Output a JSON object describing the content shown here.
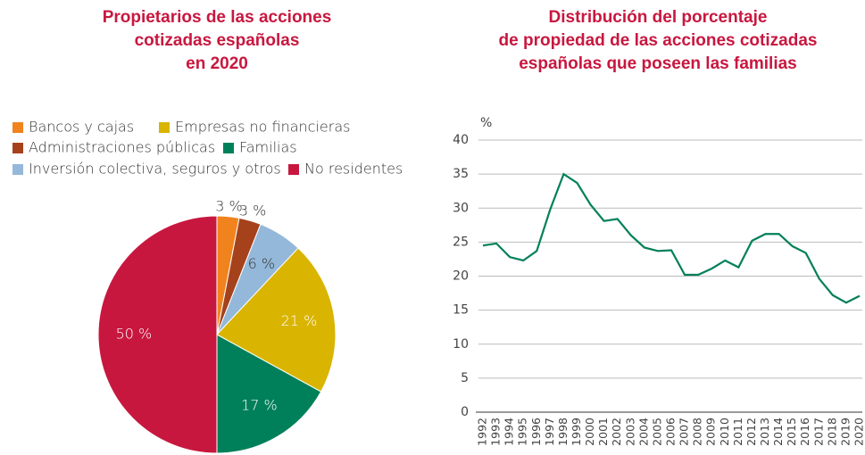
{
  "chart_data": [
    {
      "type": "pie",
      "title": [
        "Propietarios de las acciones",
        "cotizadas españolas",
        "en 2020"
      ],
      "categories": [
        "Bancos y cajas",
        "Administraciones públicas",
        "Inversión colectiva, seguros y otros",
        "Empresas no financieras",
        "Familias",
        "No residentes"
      ],
      "values": [
        3,
        3,
        6,
        21,
        17,
        50
      ],
      "value_labels": [
        "3 %",
        "3 %",
        "6 %",
        "21 %",
        "17 %",
        "50 %"
      ],
      "colors": [
        "#f0831e",
        "#a5421c",
        "#94b8d9",
        "#d9b400",
        "#00805a",
        "#c8173f"
      ]
    },
    {
      "type": "line",
      "title": [
        "Distribución del porcentaje",
        "de propiedad de las acciones cotizadas",
        "españolas que poseen las familias"
      ],
      "ylabel": "%",
      "categories": [
        "1992",
        "1993",
        "1994",
        "1995",
        "1996",
        "1997",
        "1998",
        "1999",
        "2000",
        "2001",
        "2002",
        "2003",
        "2004",
        "2005",
        "2006",
        "2007",
        "2008",
        "2009",
        "2010",
        "2011",
        "2012",
        "2013",
        "2014",
        "2015",
        "2016",
        "2017",
        "2018",
        "2019",
        "2020"
      ],
      "values": [
        24.5,
        24.8,
        22.8,
        22.3,
        23.7,
        29.8,
        35,
        33.7,
        30.5,
        28.1,
        28.4,
        26,
        24.2,
        23.7,
        23.8,
        20.2,
        20.2,
        21.1,
        22.3,
        21.3,
        25.2,
        26.2,
        26.2,
        24.4,
        23.4,
        19.6,
        17.2,
        16.1,
        17.1
      ],
      "color": "#00805a",
      "ylim": [
        0,
        40
      ],
      "yticks": [
        0,
        5,
        10,
        15,
        20,
        25,
        30,
        35,
        40
      ],
      "grid": true
    }
  ]
}
